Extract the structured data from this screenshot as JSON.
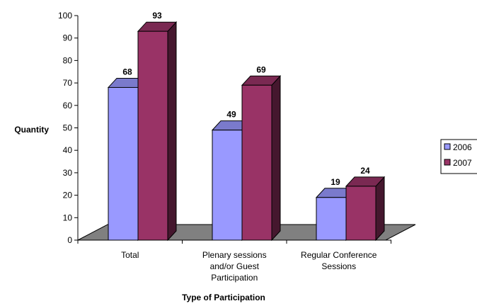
{
  "chart_data": {
    "type": "bar",
    "categories": [
      "Total",
      "Plenary sessions and/or Guest Participation",
      "Regular Conference Sessions"
    ],
    "category_lines": [
      [
        "Total"
      ],
      [
        "Plenary sessions",
        "and/or Guest",
        "Participation"
      ],
      [
        "Regular Conference",
        "Sessions"
      ]
    ],
    "series": [
      {
        "name": "2006",
        "values": [
          68,
          49,
          19
        ],
        "color": "#9999ff"
      },
      {
        "name": "2007",
        "values": [
          93,
          69,
          24
        ],
        "color": "#993366"
      }
    ],
    "ylim": [
      0,
      100
    ],
    "yticks": [
      0,
      10,
      20,
      30,
      40,
      50,
      60,
      70,
      80,
      90,
      100
    ],
    "xlabel": "Type of Participation",
    "ylabel": "Quantity",
    "data_labels": true,
    "three_d": true,
    "floor_color": "#808080",
    "legend_position": "right"
  }
}
